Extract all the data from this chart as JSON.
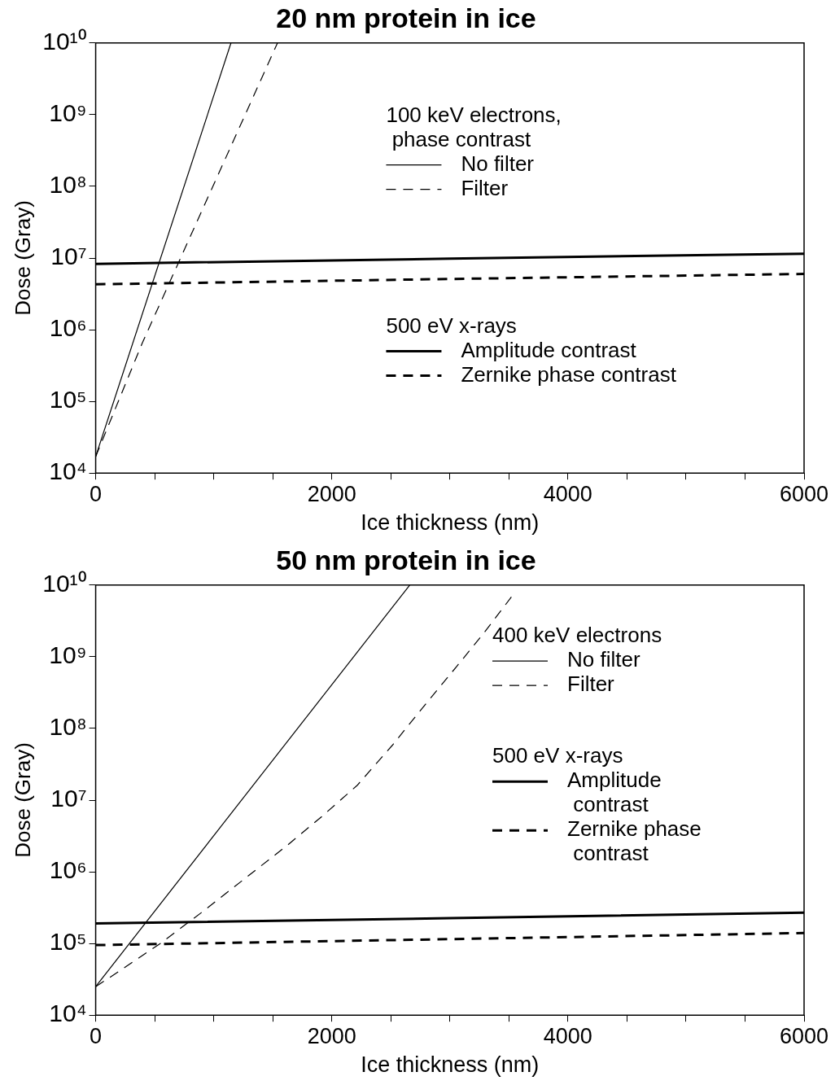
{
  "chart_data": [
    {
      "type": "line",
      "title": "20 nm protein in ice",
      "xlabel": "Ice thickness (nm)",
      "ylabel": "Dose (Gray)",
      "log": "y",
      "grid": false,
      "legend": "right",
      "marker": "none",
      "annotations": [
        "100 keV electrons,\n phase contrast",
        "500 eV x-rays"
      ],
      "xlim": [
        0,
        6000
      ],
      "xticks": [
        0,
        {
          "value": 500,
          "label": null
        },
        {
          "value": 1000,
          "label": null
        },
        {
          "value": 1500,
          "label": null
        },
        2000,
        {
          "value": 2500,
          "label": null
        },
        {
          "value": 3000,
          "label": null
        },
        {
          "value": 3500,
          "label": null
        },
        4000,
        {
          "value": 4500,
          "label": null
        },
        {
          "value": 5000,
          "label": null
        },
        {
          "value": 5500,
          "label": null
        },
        6000
      ],
      "ylim": [
        10000,
        10000000000
      ],
      "yticks": [
        {
          "value": 10000,
          "label": "10⁴"
        },
        {
          "value": 100000,
          "label": "10⁵"
        },
        {
          "value": 1000000,
          "label": "10⁶"
        },
        {
          "value": 10000000,
          "label": "10⁷"
        },
        {
          "value": 100000000,
          "label": "10⁸"
        },
        {
          "value": 1000000000,
          "label": "10⁹"
        },
        {
          "value": 10000000000,
          "label": "10¹⁰"
        }
      ],
      "series": [
        {
          "name": "No filter",
          "color": "#000000",
          "line_style": "solid",
          "x": [
            0,
            1146
          ],
          "values": [
            17000,
            10000000000
          ]
        },
        {
          "name": "Filter",
          "color": "#000000",
          "line_style": "dashed",
          "x": [
            0,
            396,
            1540
          ],
          "values": [
            17000,
            660000,
            10000000000
          ]
        },
        {
          "name": "Amplitude contrast",
          "color": "#000000",
          "line_style": "solid",
          "x": [
            0,
            3000,
            6000
          ],
          "values": [
            8300000,
            9800000,
            11500000
          ]
        },
        {
          "name": "Zernike phase contrast",
          "color": "#000000",
          "line_style": "dashed",
          "x": [
            0,
            3000,
            6000
          ],
          "values": [
            4300000,
            5100000,
            6000000
          ]
        }
      ]
    },
    {
      "type": "line",
      "title": "50 nm protein in ice",
      "xlabel": "Ice thickness (nm)",
      "ylabel": "Dose (Gray)",
      "log": "y",
      "grid": false,
      "legend": "right",
      "marker": "none",
      "annotations": [
        "400 keV electrons",
        "500 eV x-rays"
      ],
      "xlim": [
        0,
        6000
      ],
      "xticks": [
        0,
        {
          "value": 500,
          "label": null
        },
        {
          "value": 1000,
          "label": null
        },
        {
          "value": 1500,
          "label": null
        },
        2000,
        {
          "value": 2500,
          "label": null
        },
        {
          "value": 3000,
          "label": null
        },
        {
          "value": 3500,
          "label": null
        },
        4000,
        {
          "value": 4500,
          "label": null
        },
        {
          "value": 5000,
          "label": null
        },
        {
          "value": 5500,
          "label": null
        },
        6000
      ],
      "ylim": [
        10000,
        10000000000
      ],
      "yticks": [
        {
          "value": 10000,
          "label": "10⁴"
        },
        {
          "value": 100000,
          "label": "10⁵"
        },
        {
          "value": 1000000,
          "label": "10⁶"
        },
        {
          "value": 10000000,
          "label": "10⁷"
        },
        {
          "value": 100000000,
          "label": "10⁸"
        },
        {
          "value": 1000000000,
          "label": "10⁹"
        },
        {
          "value": 10000000000,
          "label": "10¹⁰"
        }
      ],
      "series": [
        {
          "name": "No filter",
          "color": "#000000",
          "line_style": "solid",
          "x": [
            0,
            2660
          ],
          "values": [
            25000,
            10000000000
          ]
        },
        {
          "name": "Filter",
          "color": "#000000",
          "line_style": "dashed",
          "x": [
            0,
            199,
            547,
            896,
            1244,
            1617,
            1915,
            2214,
            2512,
            2786,
            3060,
            3284,
            3532
          ],
          "values": [
            25000,
            41000,
            100000,
            270000,
            760000,
            2300000,
            5900000,
            16000000,
            58000000,
            210000000,
            740000000,
            2100000000,
            7200000000
          ]
        },
        {
          "name": "Amplitude contrast",
          "color": "#000000",
          "line_style": "solid",
          "x": [
            0,
            3000,
            6000
          ],
          "values": [
            190000,
            225000,
            270000
          ]
        },
        {
          "name": "Zernike phase contrast",
          "color": "#000000",
          "line_style": "dashed",
          "x": [
            0,
            3000,
            6000
          ],
          "values": [
            95000,
            115000,
            140000
          ]
        }
      ]
    }
  ]
}
